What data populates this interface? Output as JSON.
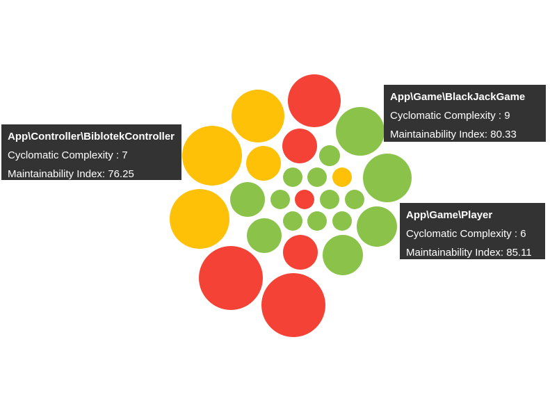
{
  "chart_data": {
    "type": "bubble",
    "colors": {
      "good": "#8bc34a",
      "warning": "#ffc107",
      "bad": "#f44336"
    },
    "tooltips": [
      {
        "class": "App\\Controller\\BiblotekController",
        "cc_label": "Cyclomatic Complexity : 7",
        "mi_label": "Maintainability Index: 76.25",
        "cyclomatic_complexity": 7,
        "maintainability_index": 76.25,
        "color": "#ffc107"
      },
      {
        "class": "App\\Game\\BlackJackGame",
        "cc_label": "Cyclomatic Complexity : 9",
        "mi_label": "Maintainability Index: 80.33",
        "cyclomatic_complexity": 9,
        "maintainability_index": 80.33,
        "color": "#8bc34a"
      },
      {
        "class": "App\\Game\\Player",
        "cc_label": "Cyclomatic Complexity : 6",
        "mi_label": "Maintainability Index: 85.11",
        "cyclomatic_complexity": 6,
        "maintainability_index": 85.11,
        "color": "#8bc34a"
      }
    ]
  }
}
